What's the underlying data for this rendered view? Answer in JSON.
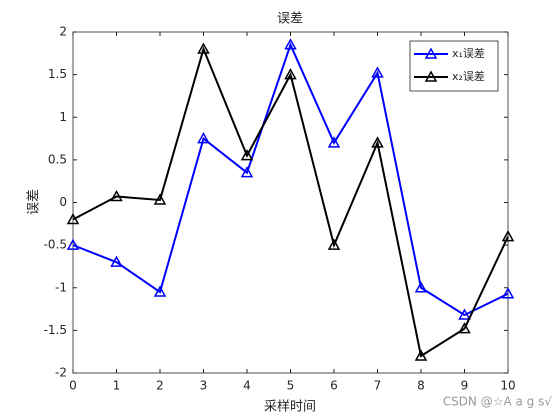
{
  "chart_data": {
    "type": "line",
    "title": "误差",
    "xlabel": "采样时间",
    "ylabel": "误差",
    "x": [
      0,
      1,
      2,
      3,
      4,
      5,
      6,
      7,
      8,
      9,
      10
    ],
    "series": [
      {
        "name": "x₁误差",
        "color": "#0000ff",
        "values": [
          -0.5,
          -0.7,
          -1.05,
          0.75,
          0.35,
          1.85,
          0.7,
          1.52,
          -1.0,
          -1.32,
          -1.07
        ]
      },
      {
        "name": "x₂误差",
        "color": "#000000",
        "values": [
          -0.2,
          0.07,
          0.03,
          1.8,
          0.55,
          1.5,
          -0.5,
          0.7,
          -1.8,
          -1.48,
          -0.4
        ]
      }
    ],
    "xlim": [
      0,
      10
    ],
    "xticks": [
      0,
      1,
      2,
      3,
      4,
      5,
      6,
      7,
      8,
      9,
      10
    ],
    "ylim": [
      -2,
      2
    ],
    "yticks": [
      -2,
      -1.5,
      -1,
      -0.5,
      0,
      0.5,
      1,
      1.5,
      2
    ],
    "grid": false,
    "legend": "upper right",
    "marker": "triangle",
    "watermark": "CSDN @☆A a g s√"
  }
}
